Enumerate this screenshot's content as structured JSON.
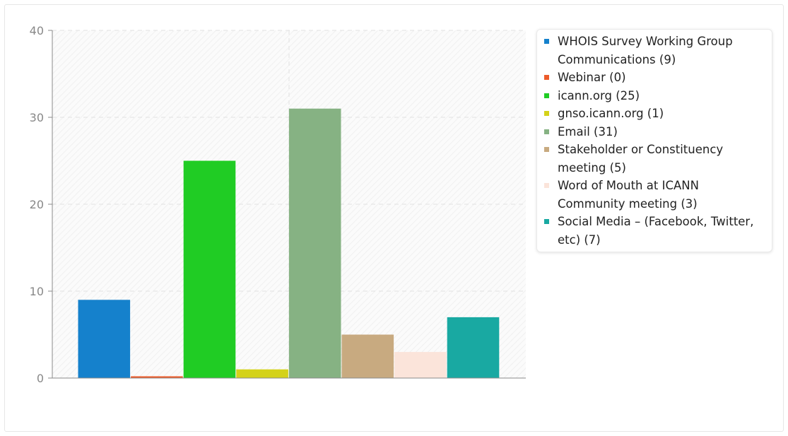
{
  "chart_data": {
    "type": "bar",
    "title": "",
    "xlabel": "",
    "ylabel": "",
    "ylim": [
      0,
      40
    ],
    "yticks": [
      0,
      10,
      20,
      30,
      40
    ],
    "grid": true,
    "legend_position": "right",
    "series": [
      {
        "name": "WHOIS Survey Working Group Communications (9)",
        "value": 9,
        "color": "#1581cc"
      },
      {
        "name": "Webinar (0)",
        "value": 0,
        "color": "#ec5b2a"
      },
      {
        "name": "icann.org (25)",
        "value": 25,
        "color": "#20cc24"
      },
      {
        "name": "gnso.icann.org (1)",
        "value": 1,
        "color": "#d4d21a"
      },
      {
        "name": "Email (31)",
        "value": 31,
        "color": "#86b283"
      },
      {
        "name": "Stakeholder or Constituency meeting (5)",
        "value": 5,
        "color": "#c8aa80"
      },
      {
        "name": "Word of Mouth at ICANN Community meeting (3)",
        "value": 3,
        "color": "#fbe4da"
      },
      {
        "name": "Social Media – (Facebook, Twitter, etc) (7)",
        "value": 7,
        "color": "#19a9a2"
      }
    ]
  }
}
